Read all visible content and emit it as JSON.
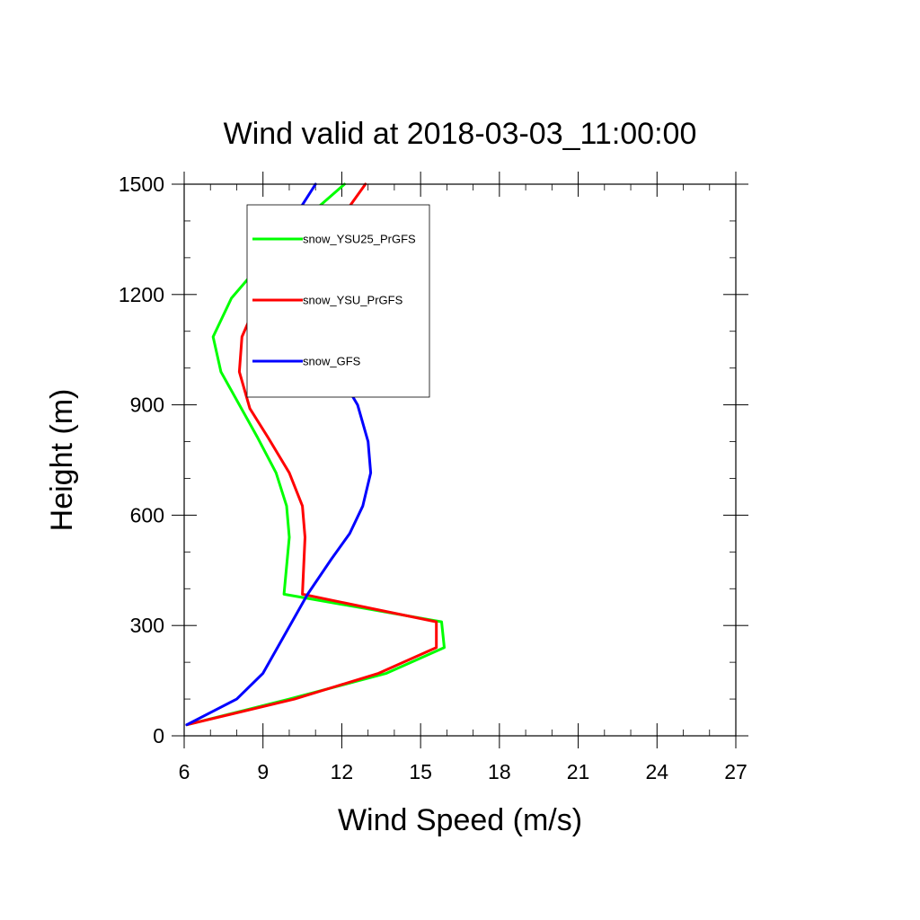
{
  "chart_data": {
    "type": "line",
    "title": "Wind valid at 2018-03-03_11:00:00",
    "xlabel": "Wind Speed (m/s)",
    "ylabel": "Height (m)",
    "xlim": [
      6,
      27
    ],
    "ylim": [
      0,
      1500
    ],
    "xticks": [
      6,
      9,
      12,
      15,
      18,
      21,
      24,
      27
    ],
    "yticks": [
      0,
      300,
      600,
      900,
      1200,
      1500
    ],
    "xminor_step": 1,
    "yminor_step": 100,
    "grid": false,
    "legend_placement": "top-left",
    "series": [
      {
        "name": "snow_YSU25_PrGFS",
        "color": "#00ff00",
        "x": [
          6.1,
          10.0,
          13.7,
          15.9,
          15.8,
          9.8,
          10.0,
          9.9,
          9.5,
          8.8,
          7.4,
          7.1,
          7.8,
          9.0,
          10.5,
          12.1
        ],
        "y": [
          30,
          100,
          170,
          240,
          310,
          385,
          540,
          625,
          715,
          810,
          990,
          1085,
          1190,
          1290,
          1400,
          1500
        ]
      },
      {
        "name": "snow_YSU_PrGFS",
        "color": "#ff0000",
        "x": [
          6.1,
          10.2,
          13.4,
          15.6,
          15.6,
          10.5,
          10.6,
          10.5,
          10.0,
          9.2,
          8.5,
          8.1,
          8.2,
          8.9,
          10.3,
          12.0,
          12.9
        ],
        "y": [
          30,
          100,
          170,
          240,
          310,
          385,
          540,
          625,
          715,
          810,
          890,
          990,
          1085,
          1200,
          1290,
          1410,
          1500
        ]
      },
      {
        "name": "snow_GFS",
        "color": "#0000ff",
        "x": [
          6.1,
          8.0,
          9.0,
          10.7,
          11.6,
          12.3,
          12.8,
          13.1,
          13.0,
          12.6,
          11.9,
          10.6,
          9.5,
          9.4,
          9.7,
          10.2,
          11.0
        ],
        "y": [
          30,
          100,
          170,
          385,
          480,
          550,
          625,
          715,
          800,
          900,
          985,
          1085,
          1190,
          1300,
          1380,
          1410,
          1500
        ]
      }
    ]
  }
}
